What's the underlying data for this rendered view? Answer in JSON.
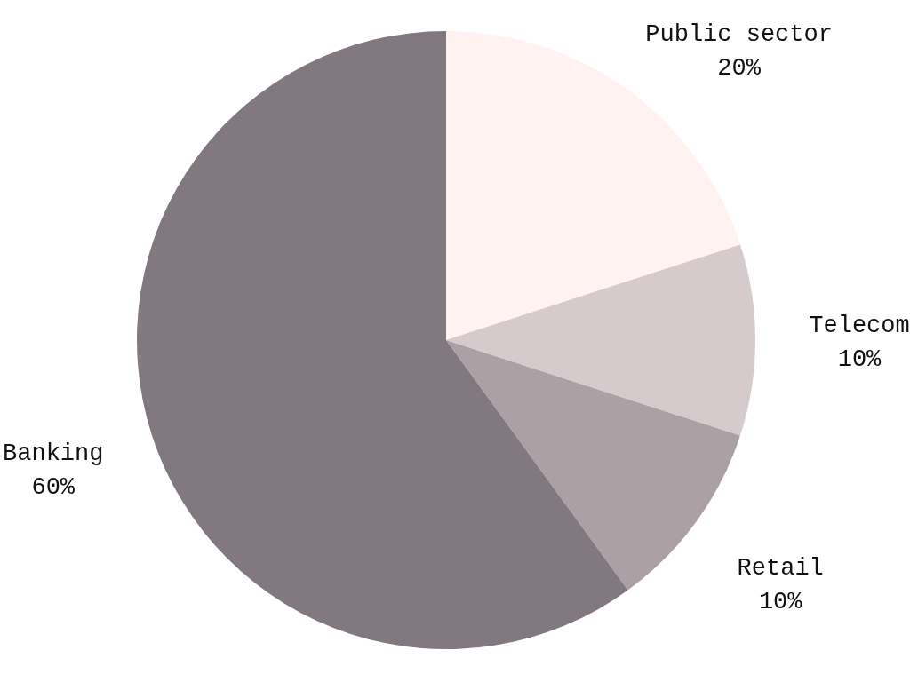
{
  "chart_data": {
    "type": "pie",
    "categories": [
      "Public sector",
      "Telecom",
      "Retail",
      "Banking"
    ],
    "values": [
      20,
      10,
      10,
      60
    ],
    "colors": [
      "#fff2f0",
      "#d5cacc",
      "#aba1a4",
      "#81797f"
    ],
    "value_labels": [
      "20%",
      "10%",
      "10%",
      "60%"
    ]
  }
}
